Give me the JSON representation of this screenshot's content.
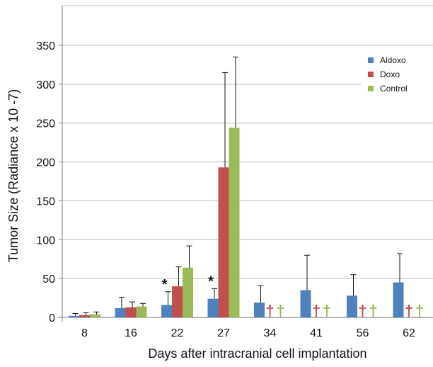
{
  "chart_data": {
    "type": "bar",
    "title": "",
    "xlabel": "Days after intracranial cell implantation",
    "ylabel": "Tumor Size (Radiance x 10 -7)",
    "ylim": [
      0,
      350
    ],
    "yticks": [
      0,
      50,
      100,
      150,
      200,
      250,
      300,
      350
    ],
    "categories": [
      "8",
      "16",
      "22",
      "27",
      "34",
      "41",
      "56",
      "62"
    ],
    "grid": true,
    "legend_position": "top-right",
    "series": [
      {
        "name": "Aldoxo",
        "color": "#4f81bd",
        "values": [
          2,
          12,
          16,
          24,
          19,
          35,
          28,
          45
        ],
        "error": [
          3,
          14,
          17,
          13,
          22,
          45,
          27,
          37
        ]
      },
      {
        "name": "Doxo",
        "color": "#c0504d",
        "values": [
          3,
          13,
          40,
          193,
          null,
          null,
          null,
          null
        ],
        "error": [
          3,
          7,
          25,
          122,
          null,
          null,
          null,
          null
        ],
        "deceased_marker": [
          false,
          false,
          false,
          false,
          true,
          true,
          true,
          true
        ]
      },
      {
        "name": "Control",
        "color": "#9bbb59",
        "values": [
          4,
          14,
          64,
          244,
          null,
          null,
          null,
          null
        ],
        "error": [
          3,
          4,
          28,
          91,
          null,
          null,
          null,
          null
        ],
        "deceased_marker": [
          false,
          false,
          false,
          false,
          true,
          true,
          true,
          true
        ]
      }
    ],
    "annotations": [
      {
        "text": "*",
        "category": "22"
      },
      {
        "text": "*",
        "category": "27"
      }
    ],
    "deceased_symbol": "†"
  }
}
